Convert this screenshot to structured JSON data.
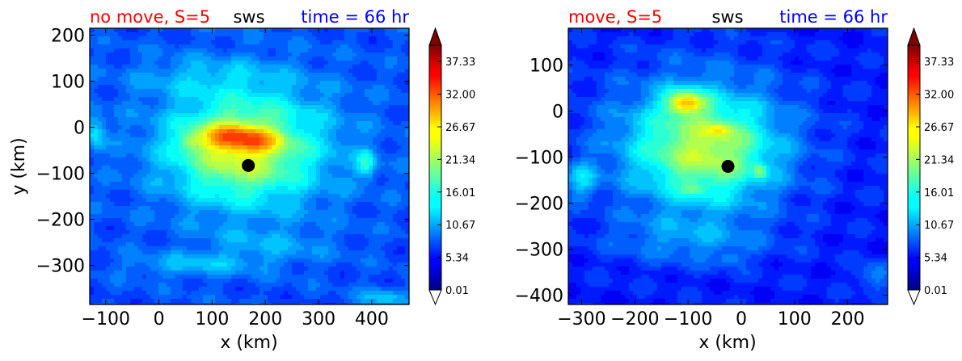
{
  "colors": {
    "title_left": "#ff0000",
    "title_center": "#000000",
    "title_right": "#0000ff",
    "storm_center": "#000000"
  },
  "colormap": "jet",
  "chart_data": [
    {
      "type": "heatmap",
      "panel": "left",
      "title_left": "no move, S=5",
      "title_center": "sws",
      "title_right": "time = 66 hr",
      "xlabel": "x (km)",
      "ylabel": "y (km)",
      "xlim": [
        -130,
        470
      ],
      "ylim": [
        -385,
        215
      ],
      "xticks": [
        -100,
        0,
        100,
        200,
        300,
        400
      ],
      "xtick_labels": [
        "−100",
        "0",
        "100",
        "200",
        "300",
        "400"
      ],
      "yticks": [
        200,
        100,
        0,
        -100,
        -200,
        -300
      ],
      "ytick_labels": [
        "200",
        "100",
        "0",
        "−100",
        "−200",
        "−300"
      ],
      "storm_center": {
        "x": 168,
        "y": -83
      },
      "field": {
        "background": 8,
        "gaussians": [
          {
            "x": 170,
            "y": -40,
            "sx": 170,
            "sy": 140,
            "a": 9
          },
          {
            "x": 150,
            "y": -55,
            "sx": 110,
            "sy": 95,
            "a": 7
          },
          {
            "x": 130,
            "y": -20,
            "sx": 55,
            "sy": 30,
            "a": 9
          },
          {
            "x": 190,
            "y": -30,
            "sx": 45,
            "sy": 25,
            "a": 6
          },
          {
            "x": 60,
            "y": -30,
            "sx": 25,
            "sy": 20,
            "a": 4
          },
          {
            "x": 390,
            "y": -80,
            "sx": 18,
            "sy": 30,
            "a": 7
          },
          {
            "x": -120,
            "y": -10,
            "sx": 20,
            "sy": 40,
            "a": 6
          },
          {
            "x": 80,
            "y": 110,
            "sx": 140,
            "sy": 40,
            "a": 3
          },
          {
            "x": 60,
            "y": -300,
            "sx": 120,
            "sy": 25,
            "a": 4
          },
          {
            "x": 200,
            "y": -260,
            "sx": 120,
            "sy": 40,
            "a": 3
          },
          {
            "x": 420,
            "y": -370,
            "sx": 40,
            "sy": 20,
            "a": 5
          }
        ]
      },
      "colorbar": {
        "ticks": [
          "37.33",
          "32.00",
          "26.67",
          "21.34",
          "16.01",
          "10.67",
          "5.34",
          "0.01"
        ],
        "tick_values": [
          37.33,
          32.0,
          26.67,
          21.34,
          16.01,
          10.67,
          5.34,
          0.01
        ],
        "range": [
          0.01,
          40.0
        ],
        "extend": "both"
      }
    },
    {
      "type": "heatmap",
      "panel": "right",
      "title_left": "move, S=5",
      "title_center": "sws",
      "title_right": "time = 66 hr",
      "xlabel": "x (km)",
      "ylabel": "",
      "xlim": [
        -325,
        275
      ],
      "ylim": [
        -420,
        180
      ],
      "xticks": [
        -300,
        -200,
        -100,
        0,
        100,
        200
      ],
      "xtick_labels": [
        "−300",
        "−200",
        "−100",
        "0",
        "100",
        "200"
      ],
      "yticks": [
        100,
        0,
        -100,
        -200,
        -300,
        -400
      ],
      "ytick_labels": [
        "100",
        "0",
        "−100",
        "−200",
        "−300",
        "−400"
      ],
      "storm_center": {
        "x": -25,
        "y": -120
      },
      "field": {
        "background": 6,
        "gaussians": [
          {
            "x": -80,
            "y": -70,
            "sx": 170,
            "sy": 150,
            "a": 10
          },
          {
            "x": -60,
            "y": -90,
            "sx": 110,
            "sy": 100,
            "a": 7
          },
          {
            "x": -105,
            "y": 20,
            "sx": 35,
            "sy": 25,
            "a": 14
          },
          {
            "x": -40,
            "y": -40,
            "sx": 25,
            "sy": 15,
            "a": 5
          },
          {
            "x": 35,
            "y": -130,
            "sx": 12,
            "sy": 15,
            "a": 7
          },
          {
            "x": -90,
            "y": -170,
            "sx": 20,
            "sy": 12,
            "a": 4
          },
          {
            "x": -300,
            "y": -150,
            "sx": 30,
            "sy": 40,
            "a": 6
          },
          {
            "x": -100,
            "y": -280,
            "sx": 150,
            "sy": 50,
            "a": 4
          },
          {
            "x": -20,
            "y": -320,
            "sx": 20,
            "sy": 15,
            "a": 4
          },
          {
            "x": 250,
            "y": -360,
            "sx": 30,
            "sy": 30,
            "a": 5
          }
        ]
      },
      "colorbar": {
        "ticks": [
          "37.33",
          "32.00",
          "26.67",
          "21.34",
          "16.01",
          "10.67",
          "5.34",
          "0.01"
        ],
        "tick_values": [
          37.33,
          32.0,
          26.67,
          21.34,
          16.01,
          10.67,
          5.34,
          0.01
        ],
        "range": [
          0.01,
          40.0
        ],
        "extend": "both"
      }
    }
  ]
}
